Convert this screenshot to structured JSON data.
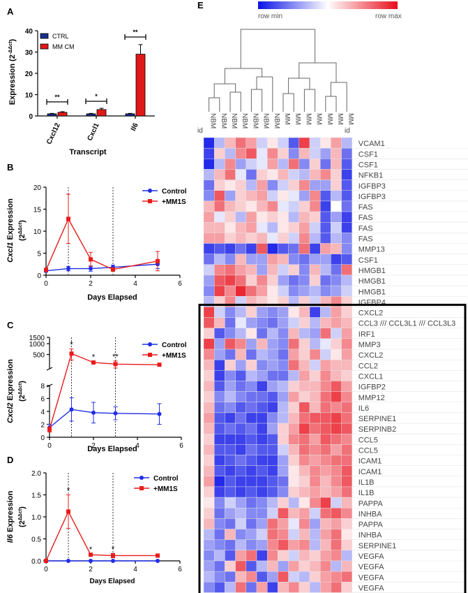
{
  "colors": {
    "ctrl": "#1a2e8c",
    "mm": "#e01818",
    "control_line": "#1f2ee8",
    "mm_line": "#e81c1c",
    "heat_min": "#0b12e6",
    "heat_mid": "#ffffff",
    "heat_max": "#e8101c"
  },
  "chart_data": [
    {
      "panel": "A",
      "type": "bar",
      "title": "",
      "xlabel": "Transcript",
      "ylabel_prefix": "Expression (2",
      "ylabel_exp": "-ΔΔct",
      "ylabel_suffix": ")",
      "categories": [
        "Cxcl12",
        "Cxcl1",
        "Il6"
      ],
      "series": [
        {
          "name": "CTRL",
          "values": [
            1.0,
            1.0,
            1.0
          ],
          "errors": [
            0.2,
            0.2,
            0.2
          ]
        },
        {
          "name": "MM CM",
          "values": [
            1.7,
            3.0,
            29.0
          ],
          "errors": [
            0.3,
            0.6,
            4.5
          ]
        }
      ],
      "significance": [
        "**",
        "*",
        "**"
      ],
      "yticks": [
        0,
        10,
        20,
        30,
        40
      ],
      "ylim": [
        0,
        40
      ],
      "legend_position": "top-left"
    },
    {
      "panel": "B",
      "type": "line",
      "xlabel": "Days Elapsed",
      "ylabel_gene": "Cxcl1",
      "ylabel_rest": " Expression",
      "ylabel_unit_base": "(2",
      "ylabel_unit_exp": "ΔΔct",
      "ylabel_unit_end": ")",
      "x": [
        0,
        1,
        2,
        3,
        5
      ],
      "series": [
        {
          "name": "Control",
          "values": [
            1.0,
            1.5,
            1.5,
            1.8,
            2.5
          ],
          "errors": [
            0.3,
            0.5,
            0.6,
            0.5,
            1.0
          ]
        },
        {
          "name": "+MM1S",
          "values": [
            1.2,
            12.8,
            3.6,
            1.3,
            3.2
          ],
          "errors": [
            0.4,
            5.6,
            1.6,
            0.4,
            2.2
          ]
        }
      ],
      "xticks": [
        0,
        2,
        4,
        6
      ],
      "yticks": [
        0,
        5,
        10,
        15,
        20
      ],
      "xlim": [
        0,
        6
      ],
      "ylim": [
        0,
        20
      ],
      "vlines": [
        1,
        3
      ],
      "legend_position": "top-right"
    },
    {
      "panel": "C",
      "type": "line",
      "xlabel": "Days Elapsed",
      "ylabel_gene": "Cxcl2",
      "ylabel_rest": " Expression",
      "ylabel_unit_base": "(2",
      "ylabel_unit_exp": "ΔΔct",
      "ylabel_unit_end": ")",
      "x": [
        0,
        1,
        2,
        3,
        5
      ],
      "series": [
        {
          "name": "Control",
          "values": [
            1.5,
            4.3,
            3.8,
            3.7,
            3.6
          ],
          "errors": [
            0.5,
            1.8,
            1.6,
            1.0,
            1.6
          ]
        },
        {
          "name": "+MM1S",
          "values": [
            1.2,
            530,
            300,
            270,
            260
          ],
          "errors": [
            0.4,
            180,
            20,
            60,
            15
          ]
        }
      ],
      "significance": [
        {
          "x": 1,
          "label": "*"
        },
        {
          "x": 2,
          "label": "*"
        },
        {
          "x": 3,
          "label": "**"
        }
      ],
      "xticks": [
        0,
        2,
        4,
        6
      ],
      "yticks_lower": [
        0,
        2,
        4,
        6,
        8
      ],
      "yticks_upper": [
        500,
        1000,
        1500
      ],
      "xlim": [
        0,
        6
      ],
      "ylim_lower": [
        0,
        8
      ],
      "ylim_upper": [
        200,
        1500
      ],
      "vlines": [
        1,
        3
      ],
      "legend_position": "top-right"
    },
    {
      "panel": "D",
      "type": "line",
      "xlabel": "Days Elapsed",
      "ylabel_gene": "Il6",
      "ylabel_rest": " Expression",
      "ylabel_unit_base": "(2",
      "ylabel_unit_exp": "ΔΔct",
      "ylabel_unit_end": ")",
      "x": [
        0,
        1,
        2,
        3,
        5
      ],
      "series": [
        {
          "name": "Control",
          "values": [
            0.0,
            0.0,
            0.0,
            0.0,
            0.0
          ],
          "errors": [
            0,
            0,
            0,
            0,
            0
          ]
        },
        {
          "name": "+MM1S",
          "values": [
            0.0,
            1.12,
            0.14,
            0.12,
            0.12
          ],
          "errors": [
            0,
            0.38,
            0.02,
            0.05,
            0.02
          ]
        }
      ],
      "significance": [
        {
          "x": 1,
          "label": "*"
        },
        {
          "x": 2,
          "label": "*"
        },
        {
          "x": 3,
          "label": "*"
        }
      ],
      "xticks": [
        0,
        2,
        4,
        6
      ],
      "yticks": [
        0.0,
        0.5,
        1.0,
        1.5,
        2.0
      ],
      "yticklabels": [
        "0.0",
        "0.5",
        "1.0",
        "1.5",
        "2.0"
      ],
      "xlim": [
        0,
        6
      ],
      "ylim": [
        0,
        2
      ],
      "vlines": [
        1,
        3
      ],
      "legend_position": "top-right"
    },
    {
      "panel": "E",
      "type": "heatmap",
      "scale_min_label": "row min",
      "scale_max_label": "row max",
      "corner_label": "id",
      "columns": [
        "NBM",
        "NBM",
        "NBM",
        "NBM",
        "NBM",
        "NBM",
        "NBM",
        "MM",
        "MM",
        "MM",
        "MM",
        "MM",
        "MM",
        "MM"
      ],
      "rows": [
        "VCAM1",
        "CSF1",
        "CSF1",
        "NFKB1",
        "IGFBP3",
        "IGFBP3",
        "FAS",
        "FAS",
        "FAS",
        "FAS",
        "MMP13",
        "CSF1",
        "HMGB1",
        "HMGB1",
        "HMGB1",
        "IGFBP4",
        "CXCL2",
        "CCL3 /// CCL3L1 /// CCL3L3",
        "IRF1",
        "MMP3",
        "CXCL2",
        "CCL2",
        "CXCL1",
        "IGFBP2",
        "MMP12",
        "IL6",
        "SERPINE1",
        "SERPINB2",
        "CCL5",
        "CCL5",
        "ICAM1",
        "ICAM1",
        "IL1B",
        "IL1B",
        "PAPPA",
        "INHBA",
        "PAPPA",
        "INHBA",
        "SERPINE1",
        "VEGFA",
        "VEGFA",
        "VEGFA",
        "VEGFA"
      ],
      "values": [
        [
          -0.9,
          -0.3,
          0.3,
          0.6,
          0.4,
          -0.2,
          0.1,
          -0.2,
          -0.7,
          0.8,
          -0.2,
          0.1,
          0.4,
          -0.3
        ],
        [
          -0.8,
          0.2,
          -0.3,
          0.5,
          0.7,
          -0.1,
          0.5,
          0.2,
          -0.5,
          0.3,
          -0.2,
          -0.4,
          0.3,
          -0.6
        ],
        [
          -0.9,
          -0.3,
          0.5,
          -0.4,
          -0.2,
          -0.1,
          0.4,
          -0.3,
          0.6,
          -0.5,
          0.2,
          -0.6,
          0.3,
          -0.7
        ],
        [
          -0.3,
          0.3,
          0.6,
          -0.1,
          -0.6,
          0.2,
          0.1,
          0.3,
          -0.2,
          -0.3,
          0.3,
          0.5,
          0.2,
          -0.8
        ],
        [
          -0.6,
          0.2,
          0.1,
          0.2,
          -0.3,
          0.4,
          -0.5,
          -0.2,
          0.2,
          0.5,
          -0.4,
          -0.4,
          0.2,
          -0.7
        ],
        [
          -0.5,
          0.7,
          -0.4,
          0.2,
          0.3,
          0.4,
          -0.2,
          0.1,
          -0.1,
          -0.4,
          0.5,
          -0.7,
          -0.3,
          -0.7
        ],
        [
          0.3,
          0.6,
          0.3,
          0.2,
          0.1,
          0.3,
          0.5,
          -0.1,
          -0.2,
          0.2,
          0.5,
          -0.8,
          0.0,
          -0.6
        ],
        [
          0.4,
          -0.1,
          0.2,
          -0.3,
          0.4,
          0.1,
          0.2,
          0.1,
          -0.3,
          0.3,
          0.2,
          -0.7,
          -0.4,
          -0.8
        ],
        [
          0.3,
          0.3,
          0.1,
          0.3,
          0.4,
          -0.1,
          -0.3,
          0.1,
          0.2,
          0.4,
          -0.2,
          -0.7,
          -0.2,
          -0.8
        ],
        [
          0.4,
          0.4,
          0.2,
          0.3,
          0.2,
          0.3,
          -0.1,
          0.2,
          -0.2,
          0.5,
          -0.3,
          -0.7,
          -0.3,
          -0.5
        ],
        [
          -0.8,
          -0.7,
          -0.8,
          -0.6,
          -0.8,
          0.7,
          -0.9,
          -0.7,
          -0.6,
          0.6,
          -0.8,
          0.4,
          0.3,
          -0.5
        ],
        [
          -0.6,
          -0.3,
          -0.5,
          0.3,
          -0.4,
          -0.4,
          0.4,
          0.3,
          -0.5,
          -0.6,
          -0.4,
          -0.4,
          -0.8,
          -0.7
        ],
        [
          -0.2,
          0.5,
          0.6,
          0.4,
          0.3,
          -0.4,
          0.3,
          -0.2,
          0.2,
          -0.5,
          0.3,
          -0.3,
          -0.6,
          0.6
        ],
        [
          -0.4,
          0.7,
          0.8,
          0.6,
          0.2,
          0.5,
          0.2,
          -0.4,
          -0.6,
          -0.5,
          0.2,
          -0.6,
          -0.5,
          -0.3
        ],
        [
          -0.5,
          0.8,
          0.5,
          0.9,
          0.6,
          0.4,
          0.1,
          -0.2,
          -0.5,
          -0.4,
          -0.3,
          -0.5,
          -0.4,
          -0.2
        ],
        [
          -0.3,
          0.2,
          0.5,
          -0.2,
          0.3,
          0.2,
          0.1,
          0.2,
          -0.3,
          0.2,
          -0.2,
          0.3,
          0.5,
          0.2
        ],
        [
          0.8,
          -0.2,
          -0.5,
          -0.3,
          0.2,
          -0.4,
          -0.5,
          -0.4,
          0.1,
          0.3,
          -0.8,
          -0.3,
          0.4,
          0.2
        ],
        [
          0.7,
          0.3,
          -0.6,
          -0.1,
          -0.4,
          -0.5,
          -0.6,
          -0.4,
          -0.2,
          0.2,
          -0.3,
          0.3,
          0.4,
          0.3
        ],
        [
          0.2,
          -0.7,
          -0.5,
          -0.3,
          0.1,
          -0.6,
          -0.3,
          -0.5,
          0.3,
          -0.3,
          -0.4,
          0.6,
          -0.2,
          0.4
        ],
        [
          0.8,
          -0.4,
          0.7,
          0.5,
          -0.4,
          0.3,
          -0.4,
          -0.5,
          0.6,
          0.2,
          -0.3,
          -0.1,
          0.2,
          0.5
        ],
        [
          0.5,
          -0.4,
          -0.6,
          0.3,
          -0.6,
          -0.3,
          -0.4,
          -0.6,
          0.4,
          0.2,
          0.5,
          -0.2,
          0.1,
          0.4
        ],
        [
          0.3,
          -0.8,
          0.2,
          -0.4,
          0.2,
          -0.5,
          -0.4,
          -0.5,
          0.6,
          0.3,
          -0.2,
          0.4,
          0.3,
          0.3
        ],
        [
          0.2,
          -0.8,
          -0.5,
          -0.7,
          -0.3,
          -0.4,
          -0.6,
          -0.6,
          -0.3,
          0.4,
          0.2,
          0.5,
          0.3,
          0.2
        ],
        [
          0.3,
          -0.7,
          -0.4,
          -0.6,
          -0.5,
          -0.8,
          -0.4,
          -0.3,
          0.2,
          0.3,
          0.3,
          0.5,
          0.7,
          0.4
        ],
        [
          0.2,
          -0.5,
          -0.3,
          -0.5,
          -0.6,
          -0.6,
          -0.7,
          -0.4,
          0.4,
          0.2,
          0.3,
          0.6,
          0.8,
          0.5
        ],
        [
          0.3,
          -0.6,
          -0.5,
          -0.7,
          -0.6,
          -0.7,
          -0.8,
          -0.3,
          0.2,
          0.7,
          0.3,
          0.6,
          0.5,
          0.6
        ],
        [
          0.4,
          -0.7,
          -0.8,
          -0.6,
          -0.8,
          -0.8,
          -0.5,
          -0.3,
          0.3,
          0.6,
          0.7,
          0.7,
          0.8,
          0.6
        ],
        [
          0.3,
          -0.7,
          -0.6,
          -0.7,
          -0.6,
          -0.8,
          -0.4,
          0.2,
          0.4,
          0.8,
          0.6,
          0.7,
          0.8,
          0.7
        ],
        [
          0.2,
          -0.8,
          -0.8,
          -0.8,
          -0.7,
          -0.8,
          -0.7,
          0.2,
          0.5,
          0.6,
          0.4,
          0.7,
          0.6,
          0.5
        ],
        [
          0.3,
          -0.7,
          -0.7,
          -0.8,
          -0.6,
          -0.7,
          -0.7,
          -0.2,
          0.3,
          0.6,
          0.5,
          0.6,
          0.4,
          0.6
        ],
        [
          0.2,
          -0.8,
          -0.7,
          -0.6,
          -0.7,
          -0.8,
          -0.8,
          -0.4,
          0.2,
          0.5,
          0.4,
          0.5,
          0.6,
          0.6
        ],
        [
          0.3,
          -0.7,
          -0.8,
          -0.7,
          -0.8,
          -0.7,
          -0.8,
          -0.4,
          0.1,
          0.3,
          0.5,
          0.4,
          0.5,
          0.7
        ],
        [
          0.4,
          -0.9,
          -0.7,
          -0.8,
          -0.8,
          -0.8,
          -0.7,
          -0.6,
          0.1,
          0.2,
          0.5,
          0.3,
          0.5,
          0.7
        ],
        [
          0.2,
          -0.8,
          -0.7,
          -0.8,
          -0.7,
          -0.8,
          -0.7,
          -0.5,
          0.2,
          0.3,
          0.4,
          0.3,
          0.4,
          0.6
        ],
        [
          0.1,
          -0.5,
          -0.2,
          -0.4,
          -0.6,
          -0.5,
          -0.3,
          0.2,
          -0.3,
          0.1,
          0.5,
          0.8,
          -0.2,
          0.3
        ],
        [
          0.2,
          -0.6,
          -0.4,
          -0.3,
          -0.5,
          -0.5,
          -0.2,
          0.7,
          0.3,
          0.4,
          -0.2,
          0.6,
          0.7,
          0.5
        ],
        [
          0.3,
          -0.5,
          -0.6,
          -0.2,
          -0.6,
          -0.4,
          0.6,
          0.4,
          -0.1,
          0.5,
          -0.4,
          0.3,
          0.4,
          0.2
        ],
        [
          -0.3,
          -0.6,
          0.3,
          -0.5,
          -0.4,
          -0.2,
          0.6,
          0.5,
          -0.2,
          0.3,
          -0.3,
          0.4,
          0.6,
          0.1
        ],
        [
          -0.4,
          -0.5,
          -0.6,
          -0.3,
          -0.5,
          -0.4,
          0.5,
          0.7,
          0.4,
          0.5,
          -0.3,
          0.3,
          0.6,
          0.2
        ],
        [
          -0.5,
          -0.3,
          -0.7,
          0.4,
          0.6,
          -0.8,
          0.5,
          0.2,
          -0.2,
          0.3,
          0.2,
          0.4,
          0.5,
          -0.3
        ],
        [
          -0.4,
          -0.6,
          0.2,
          0.7,
          -0.7,
          -0.3,
          0.3,
          -0.4,
          0.4,
          0.2,
          0.3,
          0.5,
          -0.3,
          0.3
        ],
        [
          -0.3,
          -0.5,
          -0.6,
          0.3,
          0.5,
          -0.7,
          -0.4,
          0.7,
          -0.2,
          -0.3,
          0.2,
          0.4,
          0.5,
          0.6
        ],
        [
          -0.5,
          -0.7,
          -0.3,
          0.6,
          -0.6,
          0.4,
          -0.8,
          0.3,
          0.5,
          0.2,
          -0.3,
          0.4,
          0.6,
          0.2
        ]
      ],
      "highlight_start_row": 16
    }
  ],
  "panel_labels": {
    "a": "A",
    "b": "B",
    "c": "C",
    "d": "D",
    "e": "E"
  },
  "axis_break_hint": "upper segment of Cxcl2 axis is compressed"
}
